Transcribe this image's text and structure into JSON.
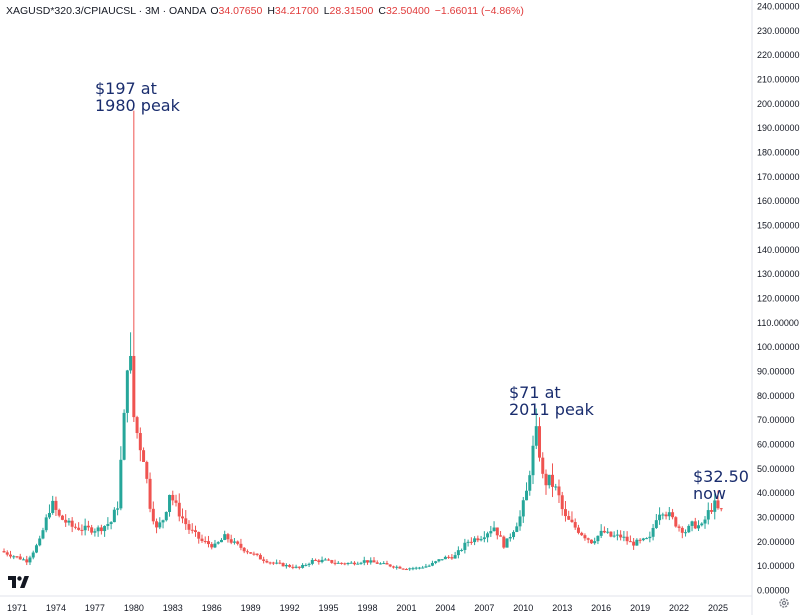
{
  "header": {
    "symbol": "XAGUSD*320.3/CPIAUCSL · 3M · OANDA",
    "o_label": "O",
    "o_value": "34.07650",
    "h_label": "H",
    "h_value": "34.21700",
    "l_label": "L",
    "l_value": "28.31500",
    "c_label": "C",
    "c_value": "32.50400",
    "change": "−1.66011 (−4.86%)"
  },
  "annotations": {
    "peak1980": "$197 at\n1980 peak",
    "peak2011": "$71 at\n2011 peak",
    "now": "$32.50\nnow"
  },
  "icons": {
    "logo": "tradingview-logo-icon",
    "settings": "gear-icon"
  },
  "colors": {
    "up": "#26a69a",
    "down": "#ef5350",
    "annotation": "#1a2d6e",
    "axis_text": "#131722"
  },
  "chart_data": {
    "type": "candlestick",
    "title": "XAGUSD*320.3/CPIAUCSL · 3M · OANDA",
    "y_axis_side": "right",
    "ylim": [
      0,
      240
    ],
    "y_ticks": [
      "0.00000",
      "10.00000",
      "20.00000",
      "30.00000",
      "40.00000",
      "50.00000",
      "60.00000",
      "70.00000",
      "80.00000",
      "90.00000",
      "100.00000",
      "110.00000",
      "120.00000",
      "130.00000",
      "140.00000",
      "150.00000",
      "160.00000",
      "170.00000",
      "180.00000",
      "190.00000",
      "200.00000",
      "210.00000",
      "220.00000",
      "230.00000",
      "240.00000"
    ],
    "x_ticks": [
      "1971",
      "1974",
      "1977",
      "1980",
      "1983",
      "1986",
      "1989",
      "1992",
      "1995",
      "1998",
      "2001",
      "2004",
      "2007",
      "2010",
      "2013",
      "2016",
      "2019",
      "2022",
      "2025"
    ],
    "key_points": [
      {
        "date": "1980",
        "value": 197,
        "label": "$197 at 1980 peak"
      },
      {
        "date": "2011",
        "value": 71,
        "label": "$71 at 2011 peak"
      },
      {
        "date": "now",
        "value": 32.5,
        "label": "$32.50 now"
      }
    ],
    "approx_close_path": [
      [
        1970.0,
        16
      ],
      [
        1971.0,
        14
      ],
      [
        1972.0,
        12
      ],
      [
        1973.0,
        20
      ],
      [
        1973.9,
        36
      ],
      [
        1974.5,
        30
      ],
      [
        1975.5,
        26
      ],
      [
        1976.5,
        25
      ],
      [
        1977.5,
        25
      ],
      [
        1978.5,
        28
      ],
      [
        1979.0,
        35
      ],
      [
        1979.5,
        70
      ],
      [
        1979.9,
        110
      ],
      [
        1980.1,
        75
      ],
      [
        1980.6,
        62
      ],
      [
        1981.0,
        55
      ],
      [
        1981.5,
        35
      ],
      [
        1982.0,
        25
      ],
      [
        1982.6,
        30
      ],
      [
        1983.0,
        40
      ],
      [
        1983.6,
        33
      ],
      [
        1984.5,
        25
      ],
      [
        1985.5,
        20
      ],
      [
        1986.5,
        18
      ],
      [
        1987.3,
        22
      ],
      [
        1988.0,
        19
      ],
      [
        1989.0,
        16
      ],
      [
        1990.0,
        13
      ],
      [
        1991.0,
        11
      ],
      [
        1992.0,
        10
      ],
      [
        1993.0,
        9
      ],
      [
        1994.0,
        12
      ],
      [
        1995.0,
        12
      ],
      [
        1996.0,
        11
      ],
      [
        1997.0,
        11
      ],
      [
        1998.0,
        12
      ],
      [
        1999.0,
        11
      ],
      [
        2000.0,
        10
      ],
      [
        2001.0,
        9
      ],
      [
        2002.0,
        9
      ],
      [
        2003.0,
        10
      ],
      [
        2004.0,
        13
      ],
      [
        2005.0,
        14
      ],
      [
        2006.0,
        20
      ],
      [
        2007.0,
        22
      ],
      [
        2008.0,
        26
      ],
      [
        2008.8,
        18
      ],
      [
        2009.5,
        25
      ],
      [
        2010.0,
        30
      ],
      [
        2010.5,
        40
      ],
      [
        2010.9,
        55
      ],
      [
        2011.3,
        65
      ],
      [
        2011.8,
        44
      ],
      [
        2012.3,
        45
      ],
      [
        2012.9,
        40
      ],
      [
        2013.4,
        30
      ],
      [
        2014.0,
        27
      ],
      [
        2014.8,
        23
      ],
      [
        2015.5,
        20
      ],
      [
        2016.4,
        24
      ],
      [
        2017.0,
        22
      ],
      [
        2017.8,
        22
      ],
      [
        2018.6,
        19
      ],
      [
        2019.4,
        20
      ],
      [
        2020.0,
        21
      ],
      [
        2020.6,
        32
      ],
      [
        2021.0,
        33
      ],
      [
        2021.6,
        30
      ],
      [
        2022.2,
        26
      ],
      [
        2022.8,
        24
      ],
      [
        2023.3,
        27
      ],
      [
        2024.0,
        26
      ],
      [
        2024.6,
        33
      ],
      [
        2025.0,
        35
      ],
      [
        2025.3,
        32.5
      ]
    ]
  }
}
